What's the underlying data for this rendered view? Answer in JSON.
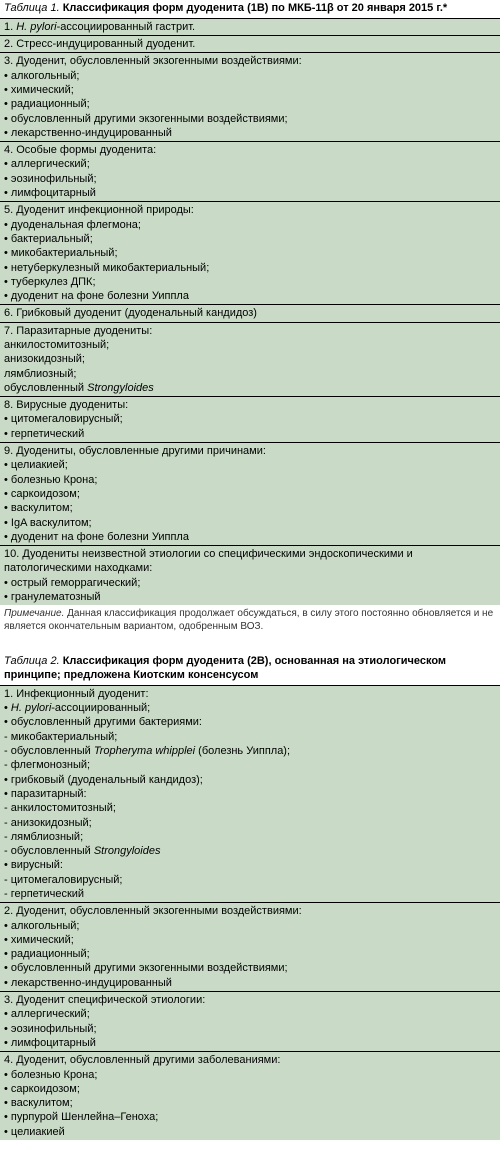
{
  "table1": {
    "caption_prefix": "Таблица 1.",
    "caption_bold": "Классификация форм дуоденита (1B) по МКБ-11β от 20 января 2015 г.*",
    "rows": [
      "1. <em class='sci'>H. pylori</em>-ассоциированный гастрит.",
      "2. Стресс-индуцированный дуоденит.",
      "3. Дуоденит, обусловленный экзогенными воздействиями:<br>• алкогольный;<br>• химический;<br>• радиационный;<br>• обусловленный другими экзогенными воздействиями;<br>• лекарственно-индуцированный",
      "4. Особые формы дуоденита:<br>• аллергический;<br>• эозинофильный;<br>• лимфоцитарный",
      "5. Дуоденит инфекционной природы:<br>• дуоденальная флегмона;<br>• бактериальный;<br>• микобактериальный;<br>• нетуберкулезный микобактериальный;<br>• туберкулез ДПК;<br>• дуоденит на фоне болезни Уиппла",
      "6. Грибковый дуоденит (дуоденальный кандидоз)",
      "7. Паразитарные дуодениты:<br>анкилостомитозный;<br>анизокидозный;<br>лямблиозный;<br>обусловленный <em class='sci'>Strongyloides</em>",
      "8. Вирусные дуодениты:<br>• цитомегаловирусный;<br>• герпетический",
      "9. Дуодениты, обусловленные другими причинами:<br>• целиакией;<br>• болезнью Крона;<br>• саркоидозом;<br>• васкулитом;<br>• IgA васкулитом;<br>• дуоденит на фоне болезни Уиппла",
      "10. Дуодениты неизвестной этиологии со специфическими эндоскопическими и патологическими находками:<br>• острый геморрагический;<br>• гранулематозный"
    ],
    "note_prefix": "Примечание.",
    "note_text": "Данная классификация продолжает обсуждаться, в силу этого постоянно обновляется и не является окончательным вариантом, одобренным ВОЗ."
  },
  "table2": {
    "caption_prefix": "Таблица 2.",
    "caption_bold": "Классификация форм дуоденита (2B), основанная на этиологическом принципе; предложена Киотским консенсусом",
    "rows": [
      "1. Инфекционный дуоденит:<br>• <em class='sci'>H. pylori</em>-ассоциированный;<br>• обусловленный другими бактериями:<br>- микобактериальный;<br>- обусловленный <em class='sci'>Tropheryma whipplei</em> (болезнь Уиппла);<br>- флегмонозный;<br>• грибковый (дуоденальный кандидоз);<br>• паразитарный:<br>- анкилостомитозный;<br>- анизокидозный;<br>- лямблиозный;<br>- обусловленный <em class='sci'>Strongyloides</em><br>• вирусный:<br>- цитомегаловирусный;<br>- герпетический",
      "2. Дуоденит, обусловленный экзогенными воздействиями:<br>• алкогольный;<br>• химический;<br>• радиационный;<br>• обусловленный другими экзогенными воздействиями;<br>• лекарственно-индуцированный",
      "3. Дуоденит специфической этиологии:<br>• аллергический;<br>• эозинофильный;<br>• лимфоцитарный",
      "4. Дуоденит, обусловленный другими заболеваниями:<br>• болезнью Крона;<br>• саркоидозом;<br>• васкулитом;<br>• пурпурой Шенлейна–Геноха;<br>• целиакией"
    ]
  }
}
